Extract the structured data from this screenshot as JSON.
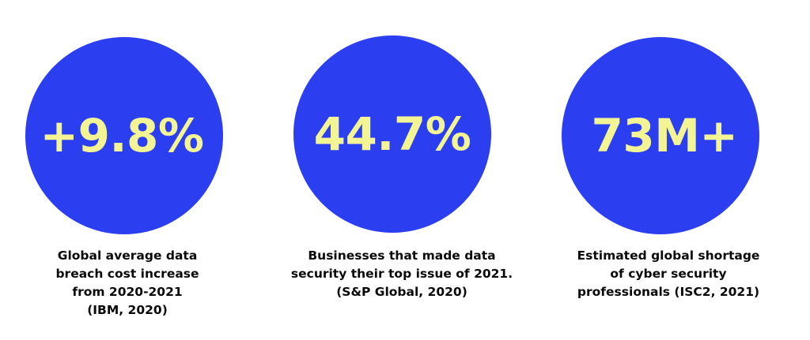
{
  "colors": {
    "circle": "#2c3ff0",
    "stat_text": "#f3f594",
    "caption_text": "#0a0a0a",
    "background": "#ffffff"
  },
  "stats": [
    {
      "value": "+9.8%",
      "caption_lines": [
        "Global average data",
        "breach cost increase",
        "from 2020-2021",
        "(IBM, 2020)"
      ]
    },
    {
      "value": "44.7%",
      "caption_lines": [
        "Businesses that made data",
        "security their top issue of 2021.",
        "(S&P Global, 2020)"
      ]
    },
    {
      "value": "73M+",
      "caption_lines": [
        "Estimated global shortage",
        "of cyber security",
        "professionals (ISC2, 2021)"
      ]
    }
  ]
}
